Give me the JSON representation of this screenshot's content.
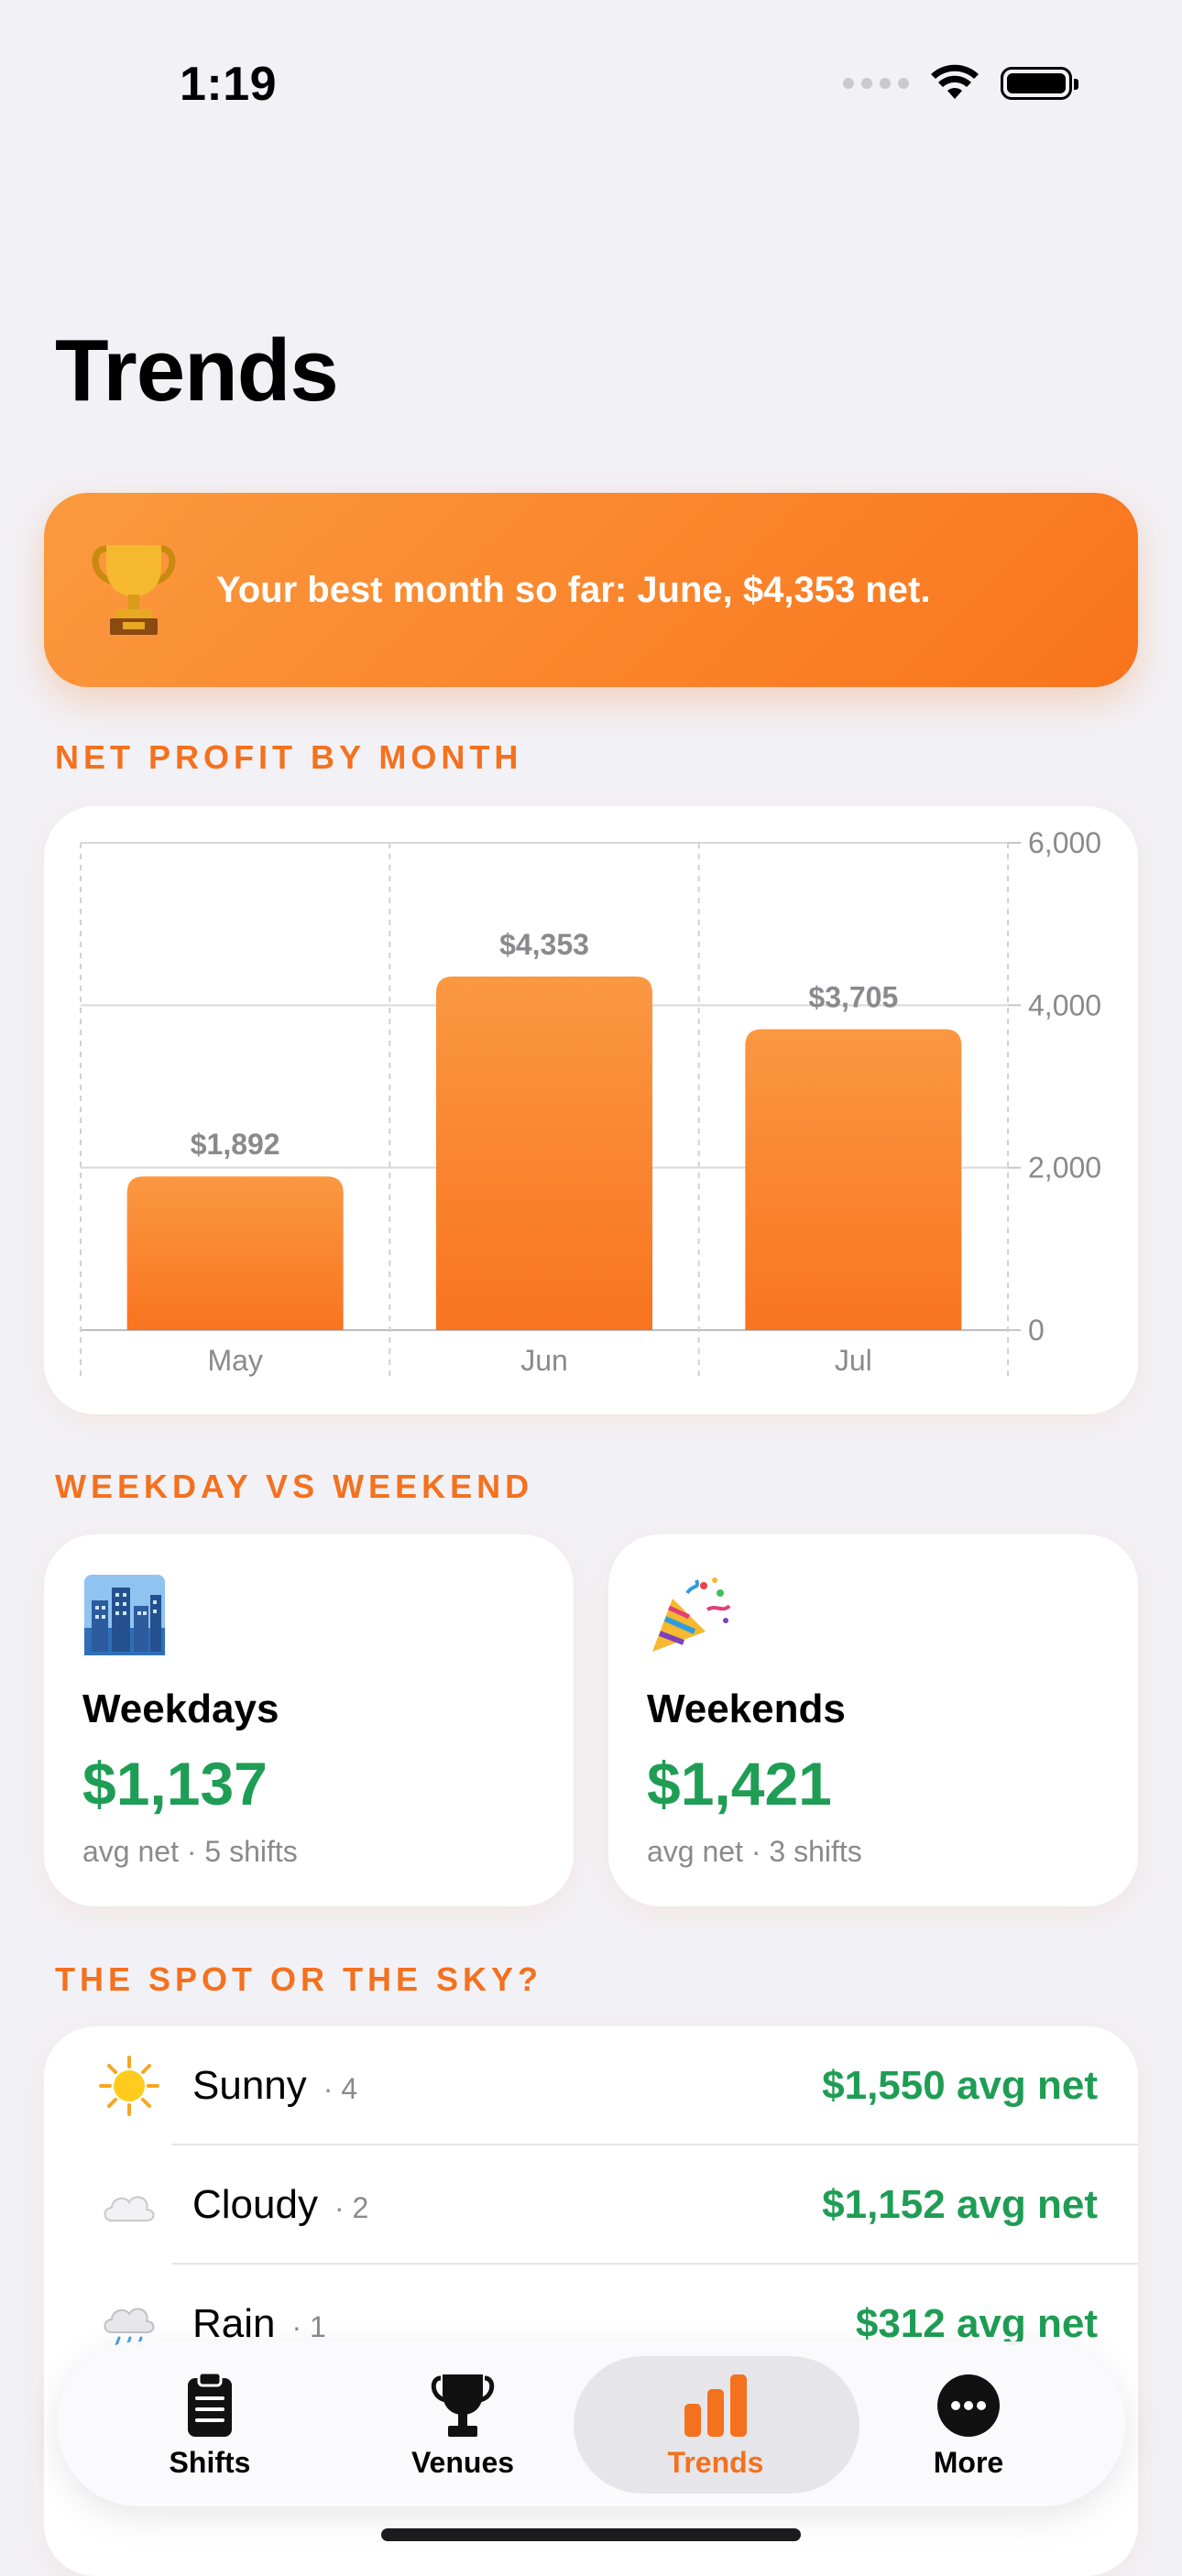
{
  "status_bar": {
    "time": "1:19"
  },
  "page": {
    "title": "Trends"
  },
  "banner": {
    "text": "Your best month so far: June, $4,353 net.",
    "icon": "trophy-icon"
  },
  "sections": {
    "net_profit": "NET PROFIT BY MONTH",
    "weekday_weekend": "WEEKDAY VS WEEKEND",
    "spot_or_sky": "THE SPOT OR THE SKY?"
  },
  "chart_data": {
    "type": "bar",
    "categories": [
      "May",
      "Jun",
      "Jul"
    ],
    "values": [
      1892,
      4353,
      3705
    ],
    "data_labels": [
      "$1,892",
      "$4,353",
      "$3,705"
    ],
    "y_ticks": [
      "6,000",
      "4,000",
      "2,000",
      "0"
    ],
    "ylim": [
      0,
      6000
    ],
    "grid": true,
    "axis_position": "right",
    "bar_color": "#F97A22"
  },
  "weekday_weekend": [
    {
      "icon": "cityscape-icon",
      "label": "Weekdays",
      "value": "$1,137",
      "sub": "avg net · 5 shifts"
    },
    {
      "icon": "party-popper-icon",
      "label": "Weekends",
      "value": "$1,421",
      "sub": "avg net · 3 shifts"
    }
  ],
  "weather": [
    {
      "icon": "sun-icon",
      "name": "Sunny",
      "count": "· 4",
      "value": "$1,550 avg net"
    },
    {
      "icon": "cloud-icon",
      "name": "Cloudy",
      "count": "· 2",
      "value": "$1,152 avg net"
    },
    {
      "icon": "rain-cloud-icon",
      "name": "Rain",
      "count": "· 1",
      "value": "$312 avg net"
    }
  ],
  "tabs": [
    {
      "label": "Shifts",
      "icon": "clipboard-icon",
      "active": false
    },
    {
      "label": "Venues",
      "icon": "trophy-icon",
      "active": false
    },
    {
      "label": "Trends",
      "icon": "chart-bar-icon",
      "active": true
    },
    {
      "label": "More",
      "icon": "more-icon",
      "active": false
    }
  ],
  "colors": {
    "accent": "#F4711E",
    "positive": "#1F9D55",
    "background": "#F2F1F6"
  }
}
